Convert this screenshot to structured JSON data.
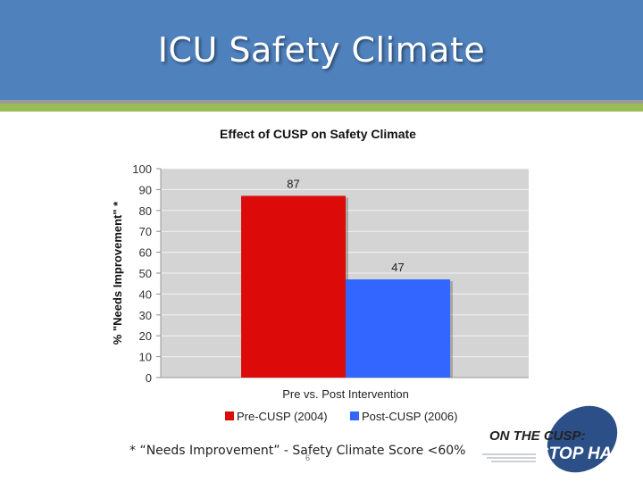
{
  "slide": {
    "title": "ICU Safety Climate",
    "footnote": "* “Needs Improvement” - Safety Climate Score  <60%",
    "slide_number": "6",
    "logo": {
      "line1": "ON THE CUSP:",
      "line2": "STOP HAI"
    },
    "colors": {
      "title_bar": "#4f81bd",
      "accent_green": "#9bbb59",
      "logo_blue": "#2b4f86"
    }
  },
  "chart_data": {
    "type": "bar",
    "title": "Effect of CUSP on Safety Climate",
    "xlabel": "Pre vs. Post Intervention",
    "ylabel": "% \"Needs Improvement\" *",
    "ylim": [
      0,
      100
    ],
    "yticks": [
      "0",
      "10",
      "20",
      "30",
      "40",
      "50",
      "60",
      "70",
      "80",
      "90",
      "100"
    ],
    "grid": true,
    "legend_position": "bottom",
    "series": [
      {
        "name": "Pre-CUSP (2004)",
        "value": 87,
        "label": "87",
        "color": "#dd0a0a"
      },
      {
        "name": "Post-CUSP (2006)",
        "value": 47,
        "label": "47",
        "color": "#3366ff"
      }
    ]
  }
}
